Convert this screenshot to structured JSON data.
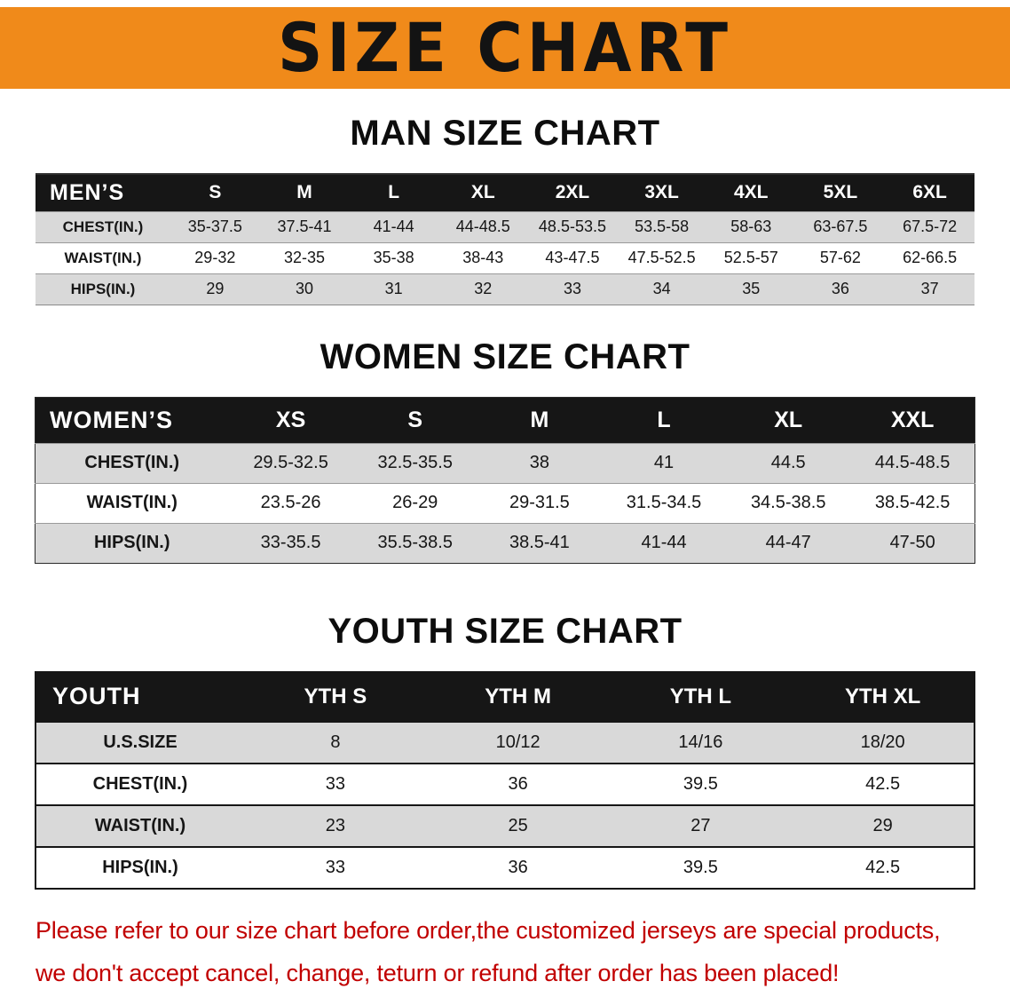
{
  "colors": {
    "banner-orange": "#f08a1a",
    "table-header": "#161616",
    "row-shade": "#d9d9d9",
    "disclaimer-red": "#c10000",
    "ink": "#111111"
  },
  "banner": {
    "title": "SIZE CHART"
  },
  "men": {
    "heading": "MAN SIZE CHART",
    "table": {
      "header": [
        "MEN’S",
        "S",
        "M",
        "L",
        "XL",
        "2XL",
        "3XL",
        "4XL",
        "5XL",
        "6XL"
      ],
      "rows": [
        {
          "label": "CHEST(IN.)",
          "values": [
            "35-37.5",
            "37.5-41",
            "41-44",
            "44-48.5",
            "48.5-53.5",
            "53.5-58",
            "58-63",
            "63-67.5",
            "67.5-72"
          ]
        },
        {
          "label": "WAIST(IN.)",
          "values": [
            "29-32",
            "32-35",
            "35-38",
            "38-43",
            "43-47.5",
            "47.5-52.5",
            "52.5-57",
            "57-62",
            "62-66.5"
          ]
        },
        {
          "label": "HIPS(IN.)",
          "values": [
            "29",
            "30",
            "31",
            "32",
            "33",
            "34",
            "35",
            "36",
            "37"
          ]
        }
      ]
    }
  },
  "women": {
    "heading": "WOMEN SIZE CHART",
    "table": {
      "header": [
        "WOMEN’S",
        "XS",
        "S",
        "M",
        "L",
        "XL",
        "XXL"
      ],
      "rows": [
        {
          "label": "CHEST(IN.)",
          "values": [
            "29.5-32.5",
            "32.5-35.5",
            "38",
            "41",
            "44.5",
            "44.5-48.5"
          ]
        },
        {
          "label": "WAIST(IN.)",
          "values": [
            "23.5-26",
            "26-29",
            "29-31.5",
            "31.5-34.5",
            "34.5-38.5",
            "38.5-42.5"
          ]
        },
        {
          "label": "HIPS(IN.)",
          "values": [
            "33-35.5",
            "35.5-38.5",
            "38.5-41",
            "41-44",
            "44-47",
            "47-50"
          ]
        }
      ]
    }
  },
  "youth": {
    "heading": "YOUTH SIZE CHART",
    "table": {
      "header": [
        "YOUTH",
        "YTH S",
        "YTH M",
        "YTH L",
        "YTH XL"
      ],
      "rows": [
        {
          "label": "U.S.SIZE",
          "values": [
            "8",
            "10/12",
            "14/16",
            "18/20"
          ]
        },
        {
          "label": "CHEST(IN.)",
          "values": [
            "33",
            "36",
            "39.5",
            "42.5"
          ]
        },
        {
          "label": "WAIST(IN.)",
          "values": [
            "23",
            "25",
            "27",
            "29"
          ]
        },
        {
          "label": "HIPS(IN.)",
          "values": [
            "33",
            "36",
            "39.5",
            "42.5"
          ]
        }
      ]
    }
  },
  "disclaimer": {
    "line1": "Please refer to our size chart before order,the customized jerseys are special products,",
    "line2": "we don't accept cancel, change, teturn or refund after order has been placed!"
  }
}
